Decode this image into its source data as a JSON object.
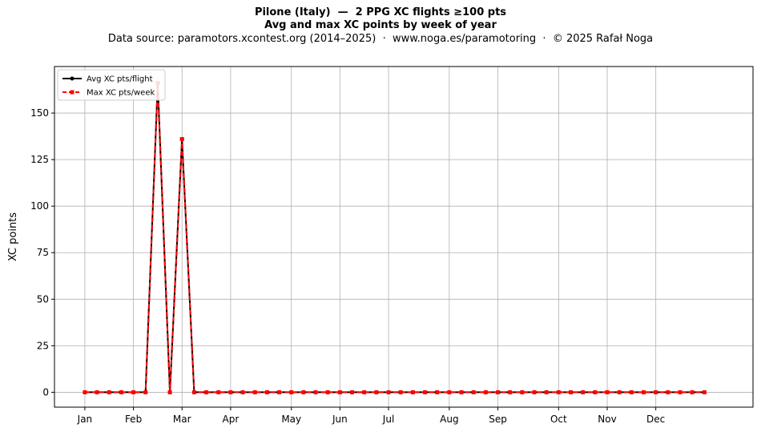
{
  "header": {
    "title_line1": "Pilone (Italy)  —  2 PPG XC flights ≥100 pts",
    "title_line2": "Avg and max XC points by week of year",
    "subtitle": "Data source: paramotors.xcontest.org (2014–2025)  ·  www.noga.es/paramotoring  ·  © 2025 Rafał Noga"
  },
  "chart_data": {
    "type": "line",
    "ylabel": "XC points",
    "ylim": [
      -8,
      175
    ],
    "yticks": [
      0,
      25,
      50,
      75,
      100,
      125,
      150
    ],
    "xlim": [
      -2.5,
      55
    ],
    "xticks": [
      {
        "pos": 0,
        "label": "Jan"
      },
      {
        "pos": 4,
        "label": "Feb"
      },
      {
        "pos": 8,
        "label": "Mar"
      },
      {
        "pos": 12,
        "label": "Apr"
      },
      {
        "pos": 17,
        "label": "May"
      },
      {
        "pos": 21,
        "label": "Jun"
      },
      {
        "pos": 25,
        "label": "Jul"
      },
      {
        "pos": 30,
        "label": "Aug"
      },
      {
        "pos": 34,
        "label": "Sep"
      },
      {
        "pos": 39,
        "label": "Oct"
      },
      {
        "pos": 43,
        "label": "Nov"
      },
      {
        "pos": 47,
        "label": "Dec"
      }
    ],
    "grid": true,
    "legend_position": "top-left",
    "x": [
      0,
      1,
      2,
      3,
      4,
      5,
      6,
      7,
      8,
      9,
      10,
      11,
      12,
      13,
      14,
      15,
      16,
      17,
      18,
      19,
      20,
      21,
      22,
      23,
      24,
      25,
      26,
      27,
      28,
      29,
      30,
      31,
      32,
      33,
      34,
      35,
      36,
      37,
      38,
      39,
      40,
      41,
      42,
      43,
      44,
      45,
      46,
      47,
      48,
      49,
      50,
      51
    ],
    "series": [
      {
        "name": "Avg XC pts/flight",
        "color": "#000000",
        "style": "solid",
        "marker": "circle",
        "values": [
          0,
          0,
          0,
          0,
          0,
          0,
          166,
          0,
          136,
          0,
          0,
          0,
          0,
          0,
          0,
          0,
          0,
          0,
          0,
          0,
          0,
          0,
          0,
          0,
          0,
          0,
          0,
          0,
          0,
          0,
          0,
          0,
          0,
          0,
          0,
          0,
          0,
          0,
          0,
          0,
          0,
          0,
          0,
          0,
          0,
          0,
          0,
          0,
          0,
          0,
          0,
          0
        ]
      },
      {
        "name": "Max XC pts/week",
        "color": "#ff0000",
        "style": "dashed",
        "marker": "square",
        "values": [
          0,
          0,
          0,
          0,
          0,
          0,
          166,
          0,
          136,
          0,
          0,
          0,
          0,
          0,
          0,
          0,
          0,
          0,
          0,
          0,
          0,
          0,
          0,
          0,
          0,
          0,
          0,
          0,
          0,
          0,
          0,
          0,
          0,
          0,
          0,
          0,
          0,
          0,
          0,
          0,
          0,
          0,
          0,
          0,
          0,
          0,
          0,
          0,
          0,
          0,
          0,
          0
        ]
      }
    ]
  }
}
